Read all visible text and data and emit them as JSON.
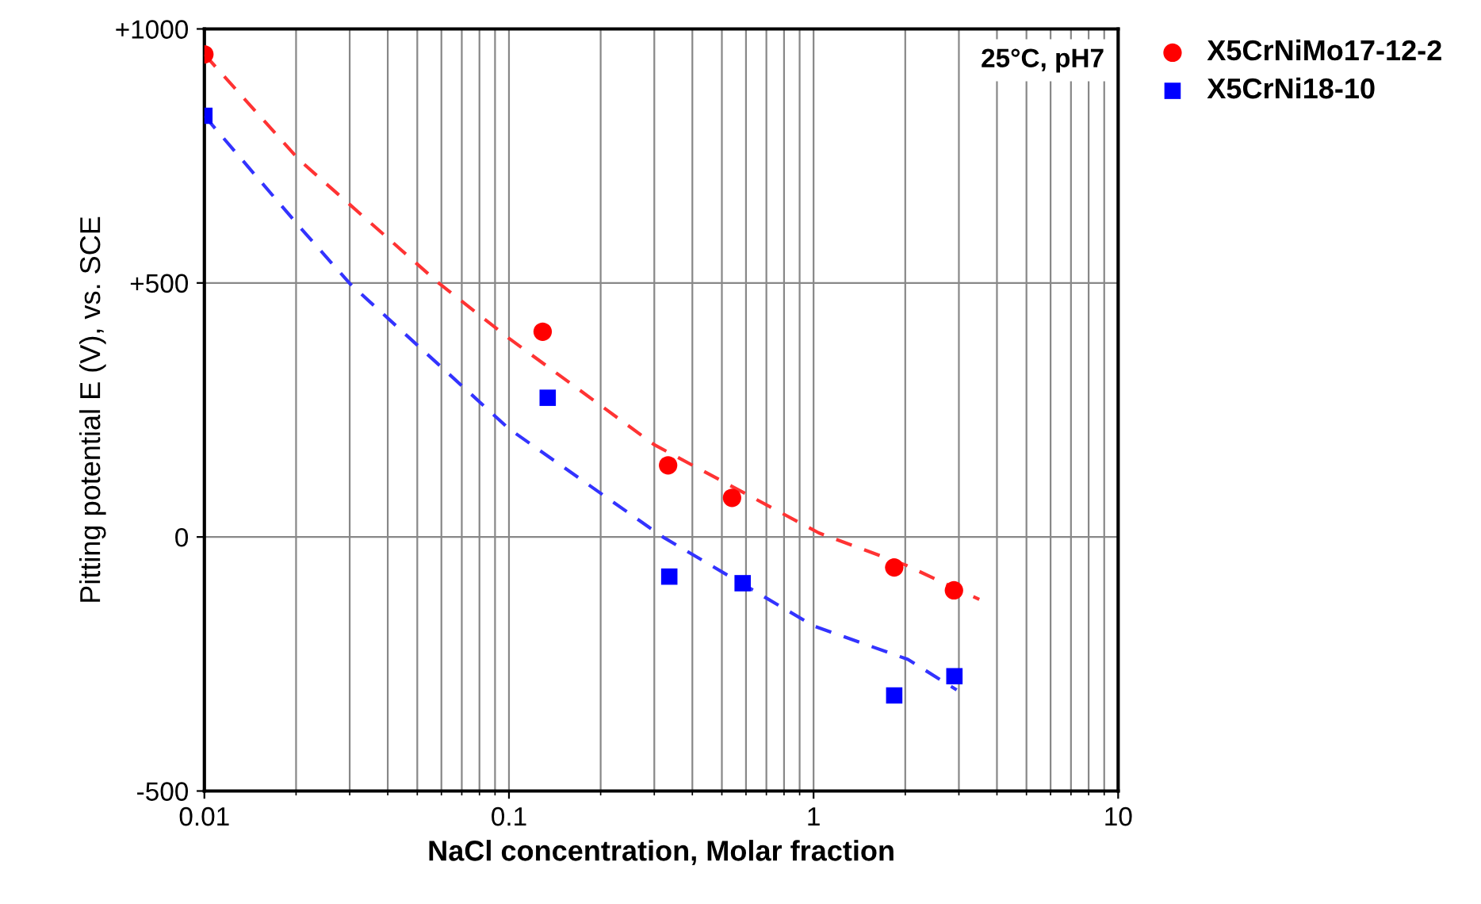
{
  "chart_data": {
    "type": "scatter",
    "xlabel": "NaCl concentration, Molar fraction",
    "ylabel": "Pitting potential E (V), vs. SCE",
    "log": "x",
    "xlim": [
      0.01,
      10
    ],
    "xticks": [
      0.01,
      0.1,
      1,
      10
    ],
    "ylim": [
      -500,
      1000
    ],
    "yticks": [
      {
        "value": -500,
        "label": "-500"
      },
      0,
      {
        "value": 500,
        "label": "+500"
      },
      {
        "value": 1000,
        "label": "+1000"
      }
    ],
    "grid": true,
    "legend": "top right",
    "annotations": [
      "25°C, pH7"
    ],
    "series": [
      {
        "name": "X5CrNiMo17-12-2",
        "color": "#ff0000",
        "marker": "circle",
        "x": [
          0.01,
          0.129,
          0.333,
          0.54,
          1.84,
          2.89
        ],
        "values": [
          950,
          404,
          141,
          77,
          -60,
          -105
        ]
      },
      {
        "name": "X5CrNi18-10",
        "color": "#0000ff",
        "marker": "square",
        "x": [
          0.01,
          0.134,
          0.336,
          0.585,
          1.84,
          2.9
        ],
        "values": [
          829,
          274,
          -78,
          -91,
          -312,
          -274
        ]
      },
      {
        "type": "line",
        "color": "#ff3333",
        "line_style": "dashed",
        "x": [
          0.01,
          0.0205,
          0.059,
          0.1,
          0.301,
          1.04,
          2.0,
          3.5
        ],
        "values": [
          950,
          742,
          499,
          391,
          181,
          8,
          -55,
          -123
        ]
      },
      {
        "type": "line",
        "color": "#3333ff",
        "line_style": "dashed",
        "x": [
          0.01,
          0.0205,
          0.03,
          0.1,
          0.32,
          1.0,
          2.04,
          2.95
        ],
        "values": [
          829,
          611,
          499,
          213,
          0,
          -175,
          -241,
          -301
        ]
      }
    ]
  }
}
